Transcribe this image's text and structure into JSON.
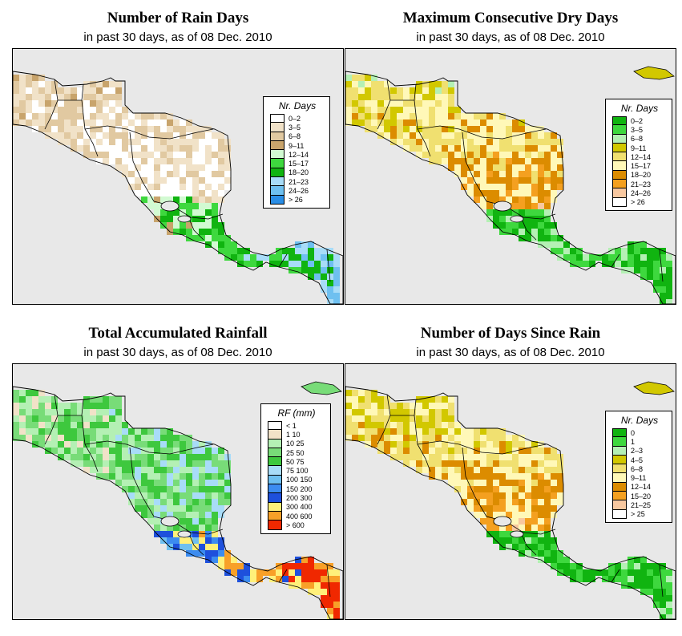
{
  "colors": {
    "ocean": "#e8e8e8",
    "land": "#ffffff"
  },
  "panels": [
    {
      "id": "rain-days",
      "title": "Number of Rain Days",
      "subtitle": "in past 30 days, as of  08 Dec. 2010",
      "legend": {
        "title": "Nr. Days",
        "items": [
          {
            "label": "0–2",
            "color": "#ffffff"
          },
          {
            "label": "3–5",
            "color": "#f1e2c8"
          },
          {
            "label": "6–8",
            "color": "#e1c9a1"
          },
          {
            "label": "9–11",
            "color": "#c8a46c"
          },
          {
            "label": "12–14",
            "color": "#d2fad2"
          },
          {
            "label": "15–17",
            "color": "#3ed83e"
          },
          {
            "label": "18–20",
            "color": "#10b410"
          },
          {
            "label": "21–23",
            "color": "#a8dcf8"
          },
          {
            "label": "24–26",
            "color": "#6ec0f0"
          },
          {
            "label": "> 26",
            "color": "#2a8ee6"
          }
        ]
      }
    },
    {
      "id": "max-dry-days",
      "title": "Maximum Consecutive Dry Days",
      "subtitle": "in past 30 days, as of  08 Dec. 2010",
      "legend": {
        "title": "Nr. Days",
        "items": [
          {
            "label": "0–2",
            "color": "#10b410"
          },
          {
            "label": "3–5",
            "color": "#3ed83e"
          },
          {
            "label": "6–8",
            "color": "#b4f0b4"
          },
          {
            "label": "9–11",
            "color": "#d2c800"
          },
          {
            "label": "12–14",
            "color": "#f0e070"
          },
          {
            "label": "15–17",
            "color": "#fff8b8"
          },
          {
            "label": "18–20",
            "color": "#dc8c00"
          },
          {
            "label": "21–23",
            "color": "#f4a020"
          },
          {
            "label": "24–26",
            "color": "#f8c8a0"
          },
          {
            "label": "> 26",
            "color": "#ffffff"
          }
        ]
      }
    },
    {
      "id": "total-rainfall",
      "title": "Total Accumulated Rainfall",
      "subtitle": "in past 30 days, as of  08 Dec. 2010",
      "legend": {
        "title": "RF (mm)",
        "items": [
          {
            "label": "< 1",
            "color": "#ffffff"
          },
          {
            "label": "1   10",
            "color": "#f1e2c8"
          },
          {
            "label": "10   25",
            "color": "#b4f0b4"
          },
          {
            "label": "25   50",
            "color": "#78dc78"
          },
          {
            "label": "50   75",
            "color": "#3ec83e"
          },
          {
            "label": "75   100",
            "color": "#a8dcf8"
          },
          {
            "label": "100   150",
            "color": "#6ec0f0"
          },
          {
            "label": "150   200",
            "color": "#3c8cf0"
          },
          {
            "label": "200   300",
            "color": "#1e50dc"
          },
          {
            "label": "300   400",
            "color": "#fff07a"
          },
          {
            "label": "400   600",
            "color": "#f8a028"
          },
          {
            "label": "> 600",
            "color": "#f02800"
          }
        ]
      }
    },
    {
      "id": "days-since-rain",
      "title": "Number of Days Since Rain",
      "subtitle": "in past 30 days, as of  08 Dec. 2010",
      "legend": {
        "title": "Nr. Days",
        "items": [
          {
            "label": "0",
            "color": "#10b410"
          },
          {
            "label": "1",
            "color": "#3ed83e"
          },
          {
            "label": "2–3",
            "color": "#b4f0b4"
          },
          {
            "label": "4–5",
            "color": "#d2c800"
          },
          {
            "label": "6–8",
            "color": "#f0e070"
          },
          {
            "label": "9–11",
            "color": "#fff8b8"
          },
          {
            "label": "12–14",
            "color": "#dc8c00"
          },
          {
            "label": "15–20",
            "color": "#f4a020"
          },
          {
            "label": "21–25",
            "color": "#f8c8a0"
          },
          {
            "label": "> 25",
            "color": "#ffffff"
          }
        ]
      }
    }
  ]
}
